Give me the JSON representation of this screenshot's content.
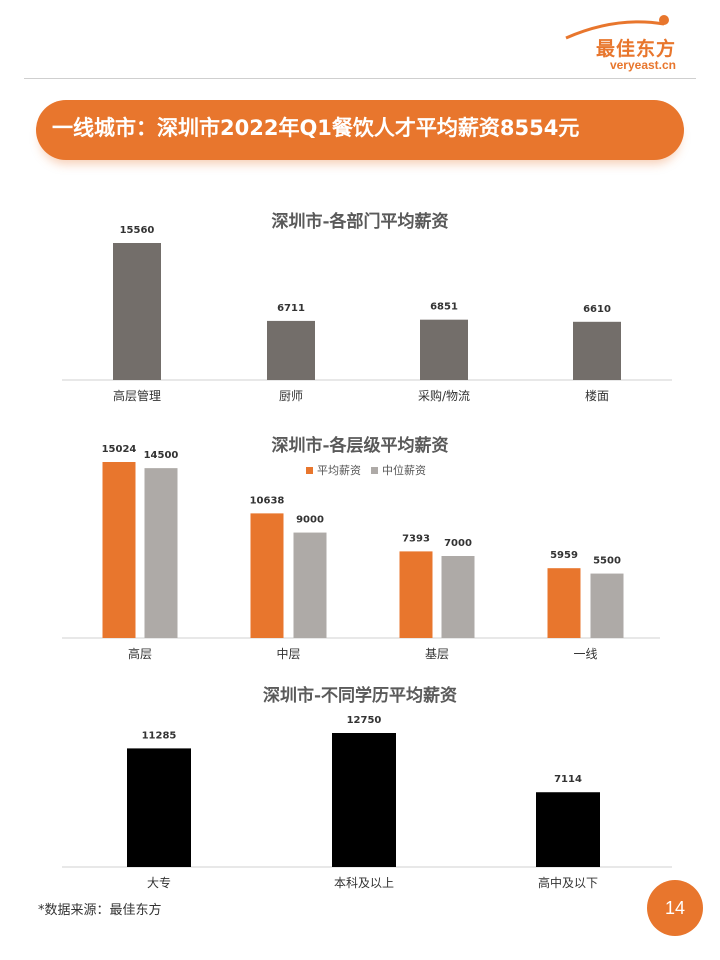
{
  "logo": {
    "text": "最佳东方",
    "url": "veryeast.cn"
  },
  "banner": {
    "title": "一线城市：深圳市2022年Q1餐饮人才平均薪资8554元"
  },
  "colors": {
    "accent": "#e8762d",
    "gray_bar": "#736e6a",
    "light_gray_bar": "#aeaaa7",
    "black_bar": "#000000"
  },
  "chart_data": [
    {
      "type": "bar",
      "title": "深圳市-各部门平均薪资",
      "categories": [
        "高层管理",
        "厨师",
        "采购/物流",
        "楼面"
      ],
      "values": [
        15560,
        6711,
        6851,
        6610
      ],
      "ylim": [
        0,
        15560
      ],
      "grid": false
    },
    {
      "type": "bar",
      "title": "深圳市-各层级平均薪资",
      "categories": [
        "高层",
        "中层",
        "基层",
        "一线"
      ],
      "series": [
        {
          "name": "平均薪资",
          "values": [
            15024,
            10638,
            7393,
            5959
          ]
        },
        {
          "name": "中位薪资",
          "values": [
            14500,
            9000,
            7000,
            5500
          ]
        }
      ],
      "ylim": [
        0,
        15024
      ],
      "legend": "top-center",
      "grid": false
    },
    {
      "type": "bar",
      "title": "深圳市-不同学历平均薪资",
      "categories": [
        "大专",
        "本科及以上",
        "高中及以下"
      ],
      "values": [
        11285,
        12750,
        7114
      ],
      "ylim": [
        0,
        12750
      ],
      "grid": false
    }
  ],
  "footer": {
    "source": "*数据来源：最佳东方",
    "page_number": "14"
  }
}
